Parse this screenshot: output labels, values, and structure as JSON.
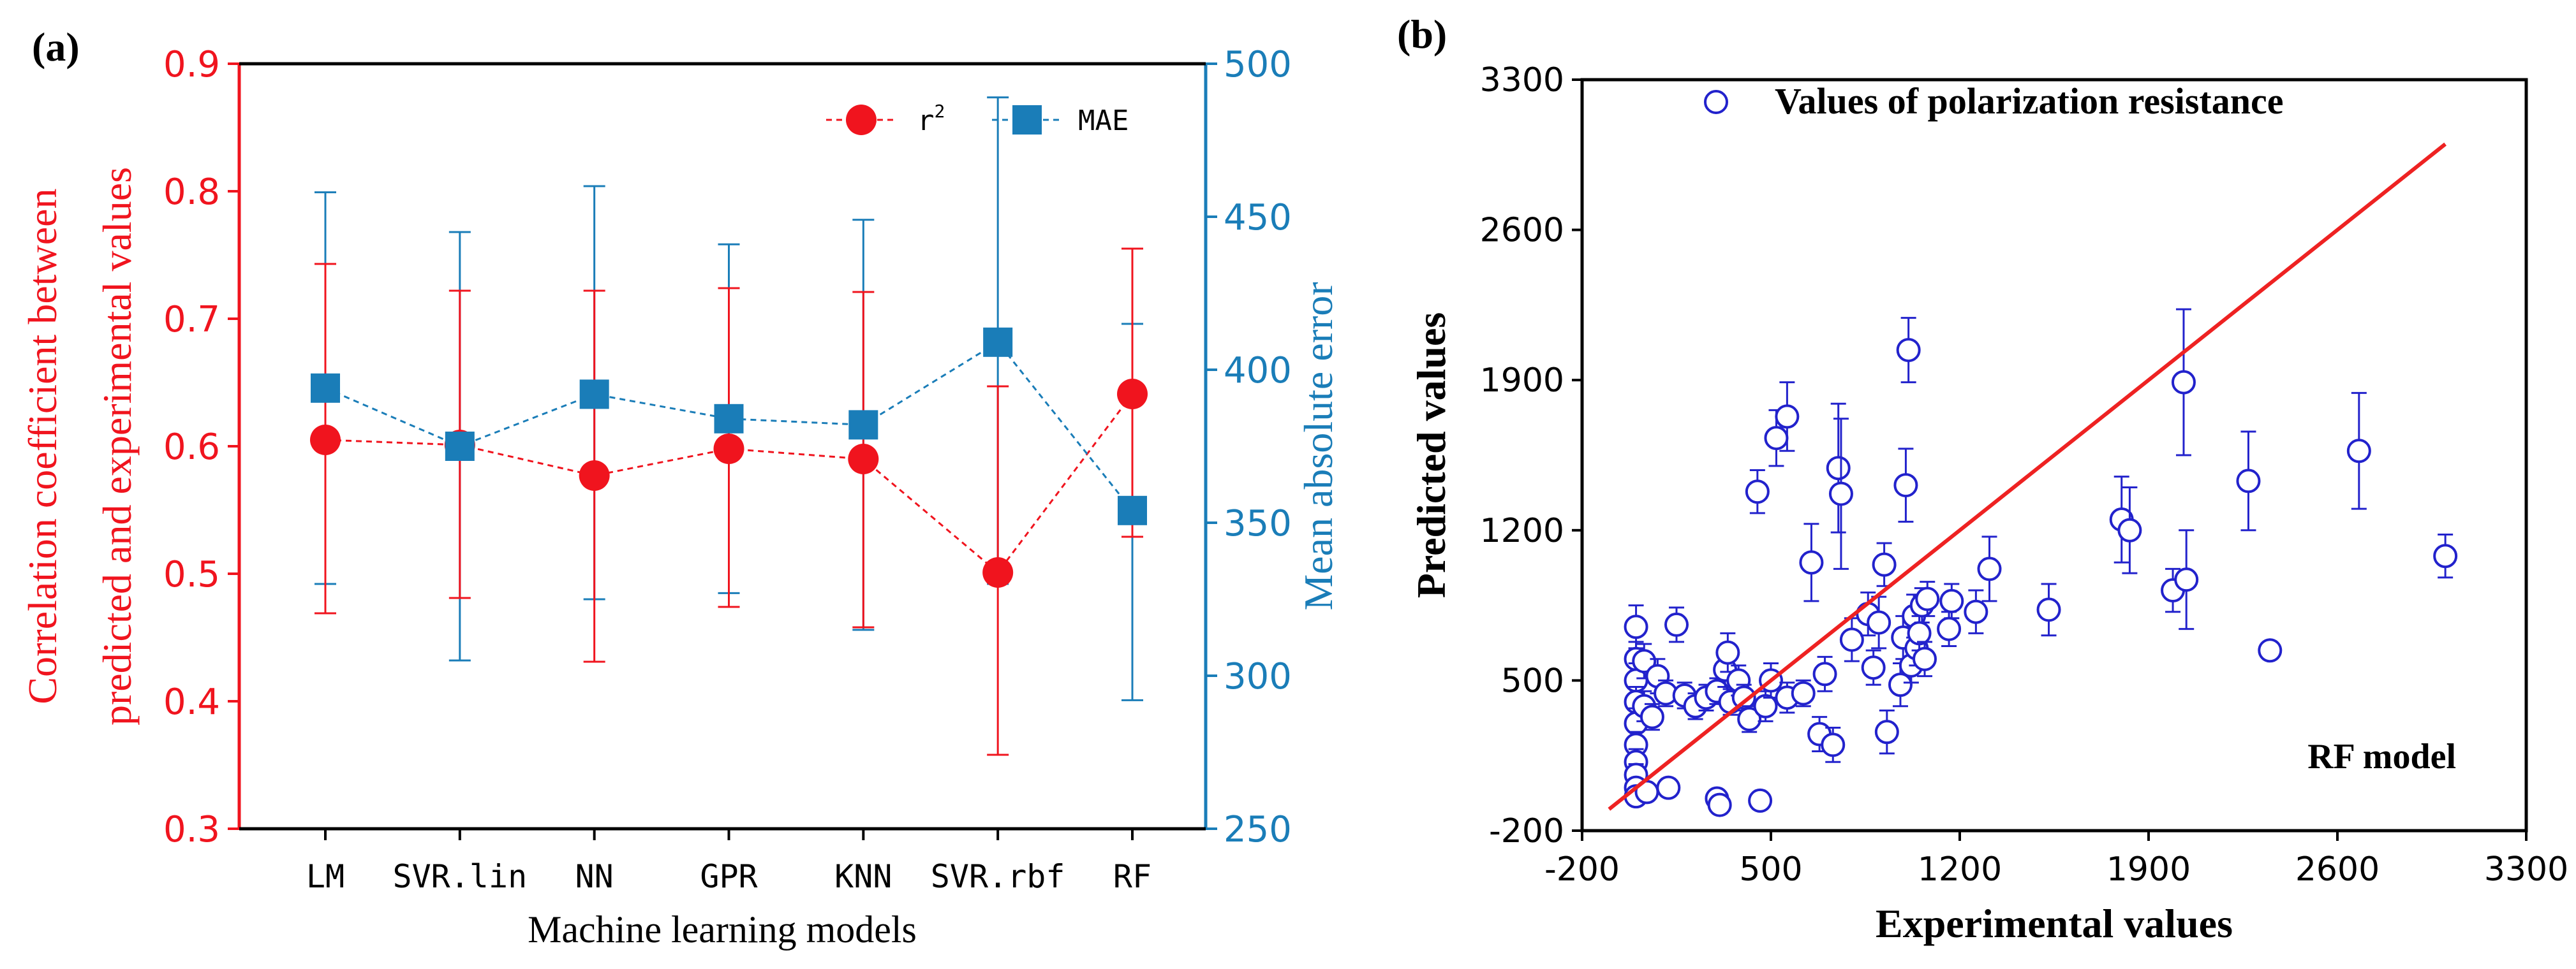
{
  "chart_data": [
    {
      "panel_label": "(a)",
      "type": "line",
      "categories": [
        "LM",
        "SVR.lin",
        "NN",
        "GPR",
        "KNN",
        "SVR.rbf",
        "RF"
      ],
      "xlabel": "Machine learning models",
      "ylabel_left": [
        "Correlation coefficient between",
        "predicted and experimental values"
      ],
      "ylabel_right": "Mean absolute error",
      "ylim_left": [
        0.3,
        0.9
      ],
      "yticks_left": [
        0.3,
        0.4,
        0.5,
        0.6,
        0.7,
        0.8,
        0.9
      ],
      "ylim_right": [
        250,
        500
      ],
      "yticks_right": [
        250,
        300,
        350,
        400,
        450,
        500
      ],
      "legend_position": "top-right",
      "series": [
        {
          "name": "r",
          "superscript": "2",
          "axis": "left",
          "color": "#f0141e",
          "marker": "circle",
          "values": [
            0.605,
            0.601,
            0.577,
            0.598,
            0.59,
            0.501,
            0.641
          ],
          "err_high": [
            0.743,
            0.722,
            0.722,
            0.724,
            0.721,
            0.647,
            0.755
          ],
          "err_low": [
            0.469,
            0.481,
            0.431,
            0.474,
            0.458,
            0.358,
            0.529
          ]
        },
        {
          "name": "MAE",
          "axis": "right",
          "color": "#1a7db8",
          "marker": "square",
          "values": [
            394,
            375,
            392,
            384,
            382,
            409,
            354
          ],
          "err_high": [
            458,
            445,
            460,
            441,
            449,
            489,
            415
          ],
          "err_low": [
            330,
            305,
            325,
            327,
            315,
            330,
            292
          ]
        }
      ]
    },
    {
      "panel_label": "(b)",
      "type": "scatter",
      "title": "Values of polarization resistance",
      "annotation": "RF model",
      "xlabel": "Experimental values",
      "ylabel": "Predicted values",
      "xlim": [
        -200,
        3300
      ],
      "ylim": [
        -200,
        3300
      ],
      "xticks": [
        -200,
        500,
        1200,
        1900,
        2600,
        3300
      ],
      "yticks": [
        -200,
        500,
        1200,
        1900,
        2600,
        3300
      ],
      "marker_color": "#2222cc",
      "fit_line_color": "#ee2222",
      "fit_line": {
        "x": [
          -100,
          3000
        ],
        "y": [
          -100,
          3000
        ]
      },
      "points": [
        {
          "x": 0,
          "y": 750,
          "err": 100
        },
        {
          "x": 0,
          "y": 600,
          "err": 80
        },
        {
          "x": 0,
          "y": 500,
          "err": 80
        },
        {
          "x": 0,
          "y": 400,
          "err": 70
        },
        {
          "x": 0,
          "y": 300,
          "err": 70
        },
        {
          "x": 0,
          "y": 200,
          "err": 60
        },
        {
          "x": 0,
          "y": 120,
          "err": 60
        },
        {
          "x": 0,
          "y": 60,
          "err": 50
        },
        {
          "x": 0,
          "y": 0,
          "err": 40
        },
        {
          "x": 0,
          "y": -40,
          "err": 30
        },
        {
          "x": 30,
          "y": 590,
          "err": 80
        },
        {
          "x": 30,
          "y": 380,
          "err": 70
        },
        {
          "x": 40,
          "y": -20,
          "err": 40
        },
        {
          "x": 60,
          "y": 330,
          "err": 60
        },
        {
          "x": 80,
          "y": 520,
          "err": 80
        },
        {
          "x": 110,
          "y": 440,
          "err": 60
        },
        {
          "x": 120,
          "y": 0,
          "err": 40
        },
        {
          "x": 150,
          "y": 760,
          "err": 80
        },
        {
          "x": 180,
          "y": 430,
          "err": 60
        },
        {
          "x": 220,
          "y": 380,
          "err": 60
        },
        {
          "x": 260,
          "y": 420,
          "err": 60
        },
        {
          "x": 300,
          "y": 450,
          "err": 60
        },
        {
          "x": 300,
          "y": -50,
          "err": 40
        },
        {
          "x": 310,
          "y": -80,
          "err": 40
        },
        {
          "x": 330,
          "y": 550,
          "err": 80
        },
        {
          "x": 340,
          "y": 630,
          "err": 90
        },
        {
          "x": 350,
          "y": 400,
          "err": 60
        },
        {
          "x": 380,
          "y": 500,
          "err": 70
        },
        {
          "x": 400,
          "y": 420,
          "err": 60
        },
        {
          "x": 420,
          "y": 320,
          "err": 60
        },
        {
          "x": 450,
          "y": 1380,
          "err": 100
        },
        {
          "x": 460,
          "y": -60,
          "err": 40
        },
        {
          "x": 480,
          "y": 380,
          "err": 70
        },
        {
          "x": 500,
          "y": 500,
          "err": 80
        },
        {
          "x": 520,
          "y": 1630,
          "err": 130
        },
        {
          "x": 560,
          "y": 1730,
          "err": 160
        },
        {
          "x": 560,
          "y": 420,
          "err": 70
        },
        {
          "x": 620,
          "y": 440,
          "err": 60
        },
        {
          "x": 650,
          "y": 1050,
          "err": 180
        },
        {
          "x": 680,
          "y": 250,
          "err": 80
        },
        {
          "x": 700,
          "y": 530,
          "err": 80
        },
        {
          "x": 730,
          "y": 200,
          "err": 80
        },
        {
          "x": 750,
          "y": 1490,
          "err": 300
        },
        {
          "x": 760,
          "y": 1370,
          "err": 350
        },
        {
          "x": 800,
          "y": 690,
          "err": 100
        },
        {
          "x": 860,
          "y": 810,
          "err": 100
        },
        {
          "x": 880,
          "y": 560,
          "err": 80
        },
        {
          "x": 900,
          "y": 770,
          "err": 120
        },
        {
          "x": 920,
          "y": 1040,
          "err": 100
        },
        {
          "x": 930,
          "y": 260,
          "err": 100
        },
        {
          "x": 980,
          "y": 480,
          "err": 100
        },
        {
          "x": 990,
          "y": 700,
          "err": 100
        },
        {
          "x": 1000,
          "y": 1410,
          "err": 170
        },
        {
          "x": 1010,
          "y": 2040,
          "err": 150
        },
        {
          "x": 1020,
          "y": 570,
          "err": 80
        },
        {
          "x": 1030,
          "y": 800,
          "err": 100
        },
        {
          "x": 1040,
          "y": 650,
          "err": 80
        },
        {
          "x": 1050,
          "y": 720,
          "err": 80
        },
        {
          "x": 1060,
          "y": 850,
          "err": 80
        },
        {
          "x": 1070,
          "y": 600,
          "err": 80
        },
        {
          "x": 1080,
          "y": 880,
          "err": 80
        },
        {
          "x": 1160,
          "y": 740,
          "err": 80
        },
        {
          "x": 1170,
          "y": 870,
          "err": 80
        },
        {
          "x": 1260,
          "y": 820,
          "err": 100
        },
        {
          "x": 1310,
          "y": 1020,
          "err": 150
        },
        {
          "x": 1530,
          "y": 830,
          "err": 120
        },
        {
          "x": 1800,
          "y": 1250,
          "err": 200
        },
        {
          "x": 1830,
          "y": 1200,
          "err": 200
        },
        {
          "x": 1990,
          "y": 920,
          "err": 100
        },
        {
          "x": 2030,
          "y": 1890,
          "err": 340
        },
        {
          "x": 2040,
          "y": 970,
          "err": 230
        },
        {
          "x": 2270,
          "y": 1430,
          "err": 230
        },
        {
          "x": 2350,
          "y": 640,
          "err": 40
        },
        {
          "x": 2680,
          "y": 1570,
          "err": 270
        },
        {
          "x": 3000,
          "y": 1080,
          "err": 100
        }
      ]
    }
  ]
}
